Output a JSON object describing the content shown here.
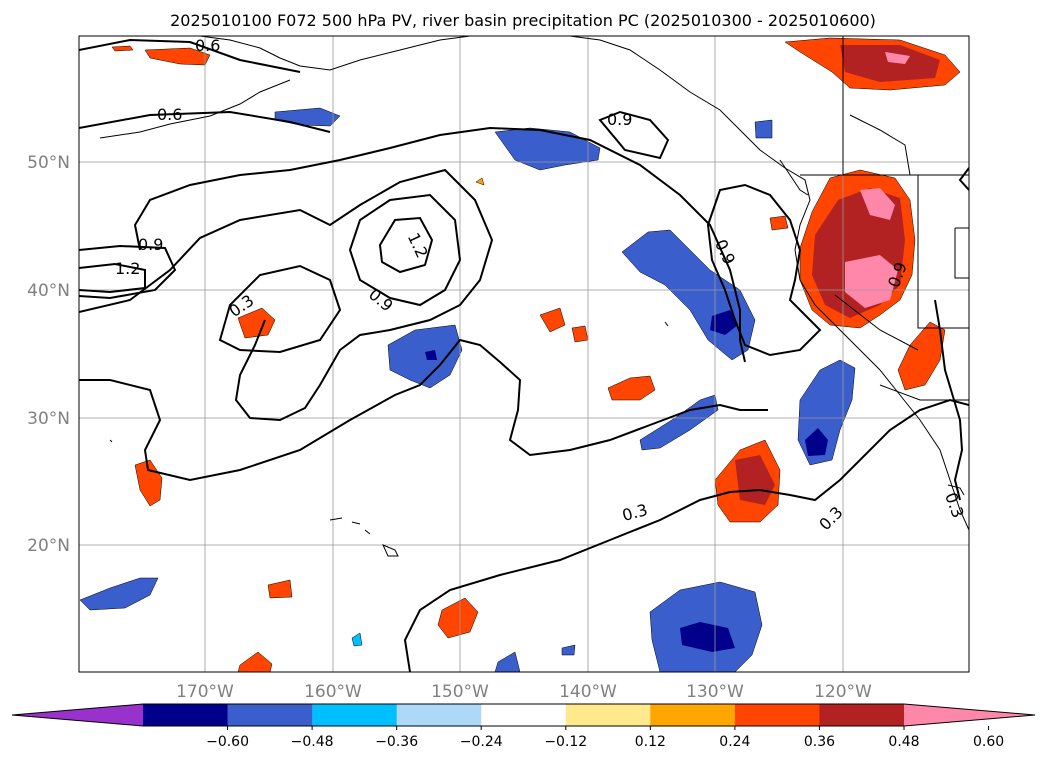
{
  "title": "2025010100 F072 500 hPa PV, river basin precipitation PC (2025010300 - 2025010600)",
  "map": {
    "lat_labels": [
      "50°N",
      "40°N",
      "30°N",
      "20°N"
    ],
    "lon_labels": [
      "170°W",
      "160°W",
      "150°W",
      "140°W",
      "130°W",
      "120°W"
    ],
    "contour_labels": [
      "0.6",
      "0.6",
      "0.9",
      "0.9",
      "1.2",
      "1.2",
      "0.9",
      "0.9",
      "0.3",
      "0.3",
      "0.3",
      "0.3",
      "0.9",
      "0.3"
    ]
  },
  "colorbar": {
    "colors": [
      "#9932cc",
      "#00008b",
      "#3a5fcd",
      "#00bfff",
      "#add8f8",
      "#ffffff",
      "#ffe98c",
      "#ffa500",
      "#ff4500",
      "#b22222",
      "#ff88aa"
    ],
    "tick_labels": [
      "−0.60",
      "−0.48",
      "−0.36",
      "−0.24",
      "−0.12",
      "0.12",
      "0.24",
      "0.36",
      "0.48",
      "0.60"
    ]
  }
}
